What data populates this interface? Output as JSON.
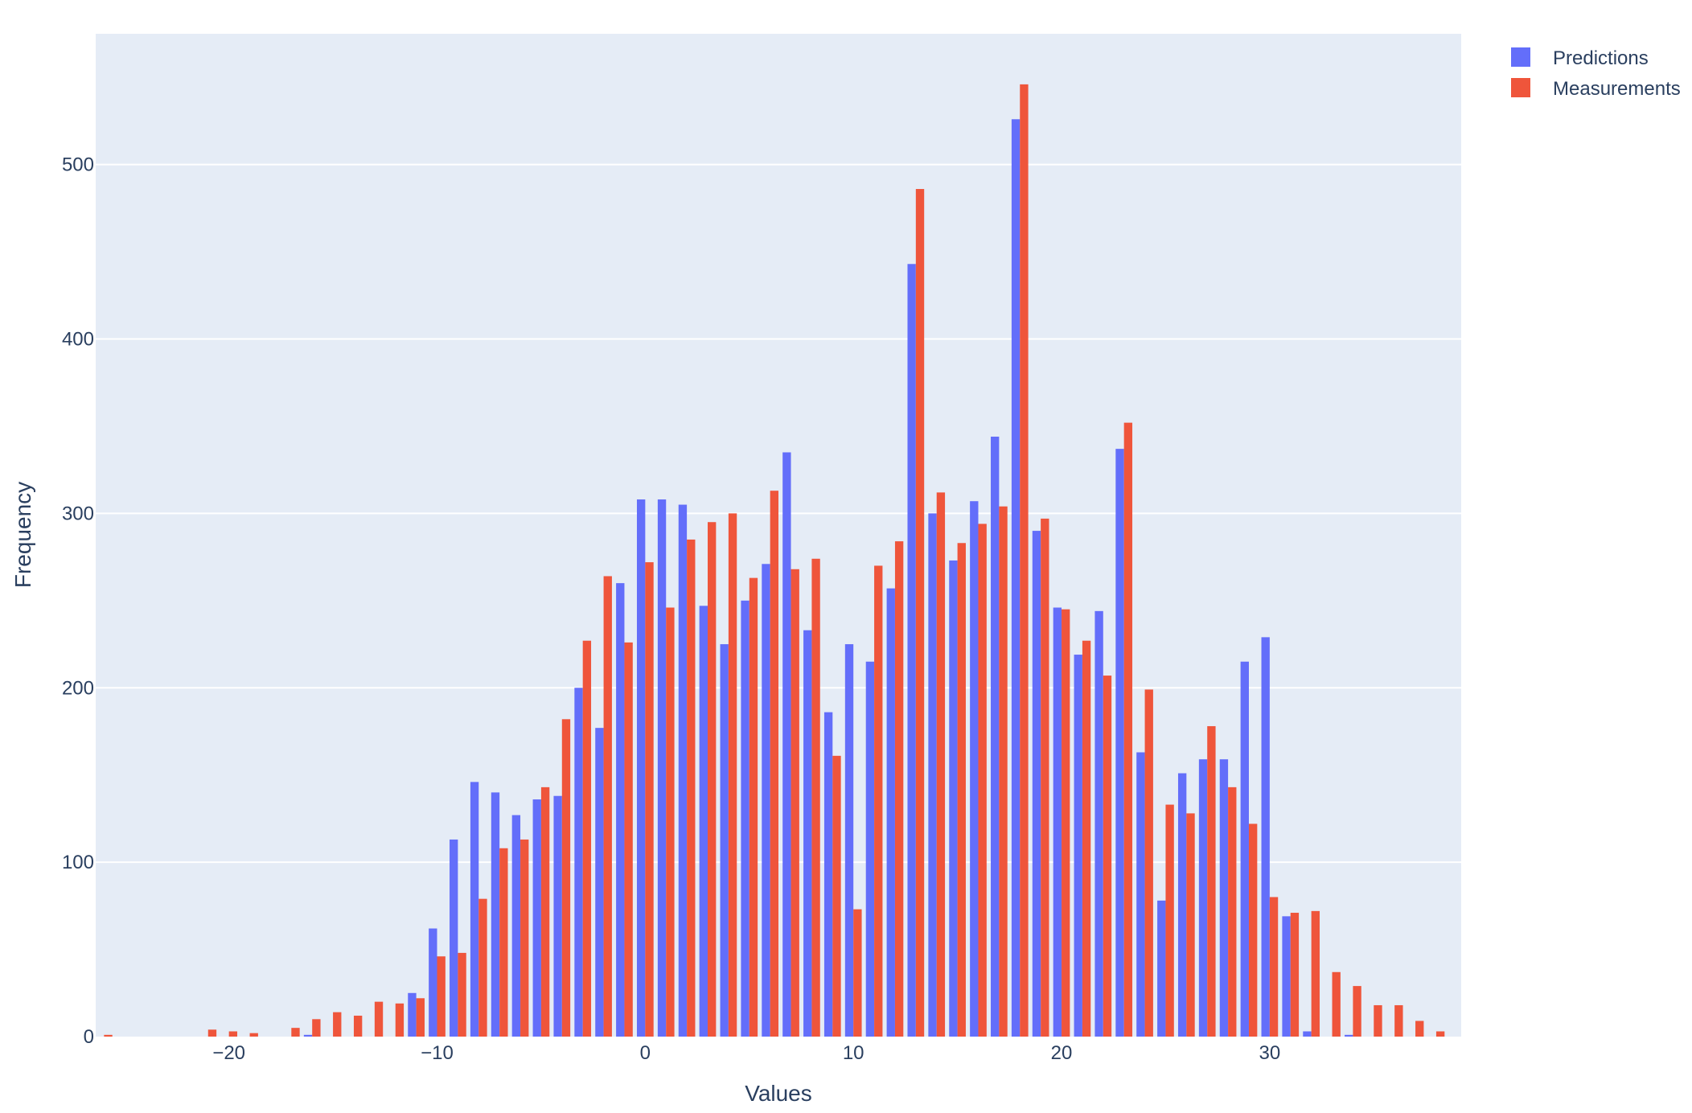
{
  "colors": {
    "plot_background": "#E5ECF6",
    "grid": "#FFFFFF",
    "text": "#2a3f5f",
    "predictions": "#636EFA",
    "measurements": "#EF553B"
  },
  "chart_data": {
    "type": "bar",
    "title": "",
    "xlabel": "Values",
    "ylabel": "Frequency",
    "xlim": [
      -26.4,
      39.2
    ],
    "ylim": [
      0,
      575
    ],
    "bin_width": 1,
    "grid": true,
    "legend_position": "top-right",
    "x_ticks": [
      -20,
      -10,
      0,
      10,
      20,
      30
    ],
    "x_tick_labels": [
      "−20",
      "−10",
      "0",
      "10",
      "20",
      "30"
    ],
    "y_ticks": [
      0,
      100,
      200,
      300,
      400,
      500
    ],
    "y_tick_labels": [
      "0",
      "100",
      "200",
      "300",
      "400",
      "500"
    ],
    "categories": [
      -26,
      -25,
      -24,
      -23,
      -22,
      -21,
      -20,
      -19,
      -18,
      -17,
      -16,
      -15,
      -14,
      -13,
      -12,
      -11,
      -10,
      -9,
      -8,
      -7,
      -6,
      -5,
      -4,
      -3,
      -2,
      -1,
      0,
      1,
      2,
      3,
      4,
      5,
      6,
      7,
      8,
      9,
      10,
      11,
      12,
      13,
      14,
      15,
      16,
      17,
      18,
      19,
      20,
      21,
      22,
      23,
      24,
      25,
      26,
      27,
      28,
      29,
      30,
      31,
      32,
      33,
      34,
      35,
      36,
      37,
      38
    ],
    "series": [
      {
        "name": "Predictions",
        "values": [
          0,
          0,
          0,
          0,
          0,
          0,
          0,
          0,
          0,
          0,
          1,
          0,
          0,
          0,
          0,
          25,
          62,
          113,
          146,
          140,
          127,
          136,
          138,
          200,
          177,
          260,
          308,
          308,
          305,
          247,
          225,
          250,
          271,
          335,
          233,
          186,
          225,
          215,
          257,
          443,
          300,
          273,
          307,
          344,
          526,
          290,
          246,
          219,
          244,
          337,
          163,
          78,
          151,
          159,
          159,
          215,
          229,
          69,
          3,
          0,
          1,
          0,
          0,
          0,
          0
        ]
      },
      {
        "name": "Measurements",
        "values": [
          1,
          0,
          0,
          0,
          0,
          4,
          3,
          2,
          0,
          5,
          10,
          14,
          12,
          20,
          19,
          22,
          46,
          48,
          79,
          108,
          113,
          143,
          182,
          227,
          264,
          226,
          272,
          246,
          285,
          295,
          300,
          263,
          313,
          268,
          274,
          161,
          73,
          270,
          284,
          486,
          312,
          283,
          294,
          304,
          546,
          297,
          245,
          227,
          207,
          352,
          199,
          133,
          128,
          178,
          143,
          122,
          80,
          71,
          72,
          37,
          29,
          18,
          18,
          9,
          3
        ]
      }
    ]
  }
}
